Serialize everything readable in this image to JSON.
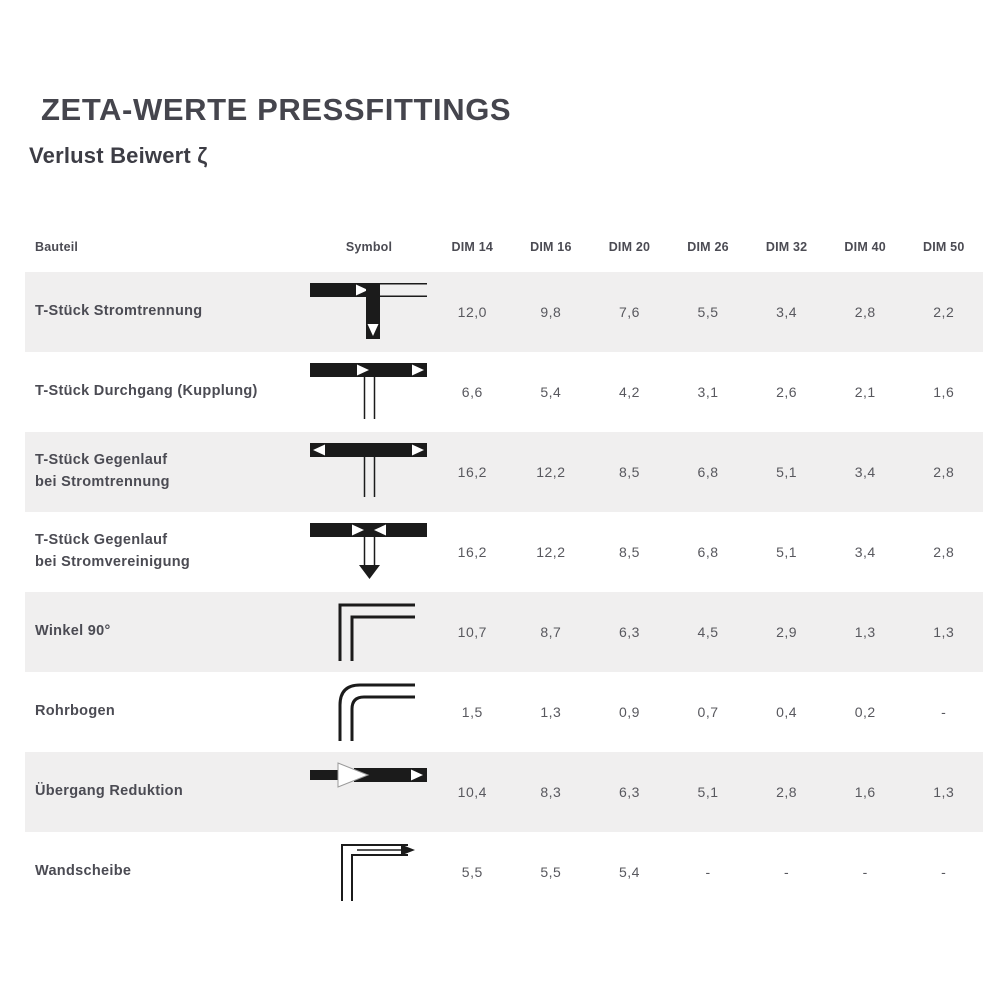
{
  "page": {
    "title": "ZETA-WERTE PRESSFITTINGS",
    "subtitle": "Verlust Beiwert ζ"
  },
  "colors": {
    "page_bg": "#ffffff",
    "heading_text": "#45454d",
    "subheading_text": "#3d3d45",
    "label_text": "#4b4b53",
    "value_text": "#58585e",
    "row_alt_bg": "#f0efef",
    "symbol_ink": "#1b1b1b"
  },
  "table": {
    "columns": [
      "Bauteil",
      "Symbol",
      "DIM 14",
      "DIM 16",
      "DIM 20",
      "DIM 26",
      "DIM 32",
      "DIM 40",
      "DIM 50"
    ],
    "rows": [
      {
        "bauteil": "T-Stück Stromtrennung",
        "symbol": "tee-flow-separation",
        "values": [
          "12,0",
          "9,8",
          "7,6",
          "5,5",
          "3,4",
          "2,8",
          "2,2"
        ]
      },
      {
        "bauteil": "T-Stück Durchgang (Kupplung)",
        "symbol": "tee-straight-flow",
        "values": [
          "6,6",
          "5,4",
          "4,2",
          "3,1",
          "2,6",
          "2,1",
          "1,6"
        ]
      },
      {
        "bauteil": "T-Stück Gegenlauf\nbei Stromtrennung",
        "symbol": "tee-counterflow-separation",
        "values": [
          "16,2",
          "12,2",
          "8,5",
          "6,8",
          "5,1",
          "3,4",
          "2,8"
        ]
      },
      {
        "bauteil": "T-Stück Gegenlauf\nbei Stromvereinigung",
        "symbol": "tee-counterflow-union",
        "values": [
          "16,2",
          "12,2",
          "8,5",
          "6,8",
          "5,1",
          "3,4",
          "2,8"
        ]
      },
      {
        "bauteil": "Winkel 90°",
        "symbol": "elbow-90",
        "values": [
          "10,7",
          "8,7",
          "6,3",
          "4,5",
          "2,9",
          "1,3",
          "1,3"
        ]
      },
      {
        "bauteil": "Rohrbogen",
        "symbol": "pipe-bend",
        "values": [
          "1,5",
          "1,3",
          "0,9",
          "0,7",
          "0,4",
          "0,2",
          "-"
        ]
      },
      {
        "bauteil": "Übergang Reduktion",
        "symbol": "reducer",
        "values": [
          "10,4",
          "8,3",
          "6,3",
          "5,1",
          "2,8",
          "1,6",
          "1,3"
        ]
      },
      {
        "bauteil": "Wandscheibe",
        "symbol": "wall-plate",
        "values": [
          "5,5",
          "5,5",
          "5,4",
          "-",
          "-",
          "-",
          "-"
        ]
      }
    ]
  }
}
